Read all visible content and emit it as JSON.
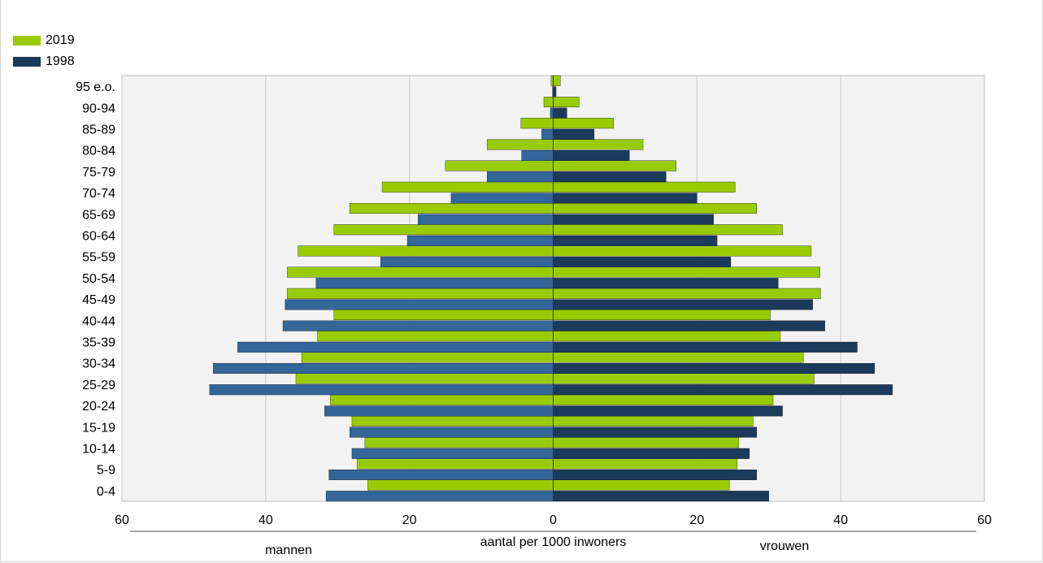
{
  "chart_data": {
    "type": "bar",
    "orientation": "horizontal",
    "layout": "population-pyramid",
    "categories": [
      "0-4",
      "5-9",
      "10-14",
      "15-19",
      "20-24",
      "25-29",
      "30-34",
      "35-39",
      "40-44",
      "45-49",
      "50-54",
      "55-59",
      "60-64",
      "65-69",
      "70-74",
      "75-79",
      "80-84",
      "85-89",
      "90-94",
      "95 e.o."
    ],
    "series": [
      {
        "name": "2019",
        "color_left": "#99cc00",
        "color_right": "#99cc00",
        "mannen": [
          25.8,
          27.3,
          26.2,
          28.0,
          31.0,
          35.8,
          35.0,
          32.8,
          30.5,
          37.0,
          37.0,
          35.5,
          30.5,
          28.3,
          23.8,
          15.0,
          9.2,
          4.5,
          1.3,
          0.3
        ],
        "vrouwen": [
          24.5,
          25.6,
          25.8,
          27.8,
          30.6,
          36.3,
          34.8,
          31.6,
          30.2,
          37.2,
          37.1,
          35.9,
          31.9,
          28.3,
          25.3,
          17.1,
          12.5,
          8.4,
          3.6,
          1.0
        ]
      },
      {
        "name": "1998",
        "color_left": "#336699",
        "color_right": "#1b3a5c",
        "mannen": [
          31.6,
          31.2,
          28.0,
          28.3,
          31.8,
          47.8,
          47.3,
          43.9,
          37.6,
          37.3,
          33.0,
          24.0,
          20.3,
          18.8,
          14.2,
          9.2,
          4.4,
          1.6,
          0.4,
          0.1
        ],
        "vrouwen": [
          30.0,
          28.3,
          27.3,
          28.3,
          31.9,
          47.2,
          44.7,
          42.3,
          37.8,
          36.1,
          31.3,
          24.7,
          22.8,
          22.3,
          20.0,
          15.7,
          10.6,
          5.7,
          1.9,
          0.4
        ]
      }
    ],
    "xlim": [
      -60,
      60
    ],
    "x_ticks": [
      60,
      40,
      20,
      0,
      20,
      40,
      60
    ],
    "xlabel": "aantal per 1000 inwoners",
    "left_label": "mannen",
    "right_label": "vrouwen",
    "grid": "vertical",
    "legend_position": "top-left",
    "plot_background": "#f2f2f2"
  }
}
